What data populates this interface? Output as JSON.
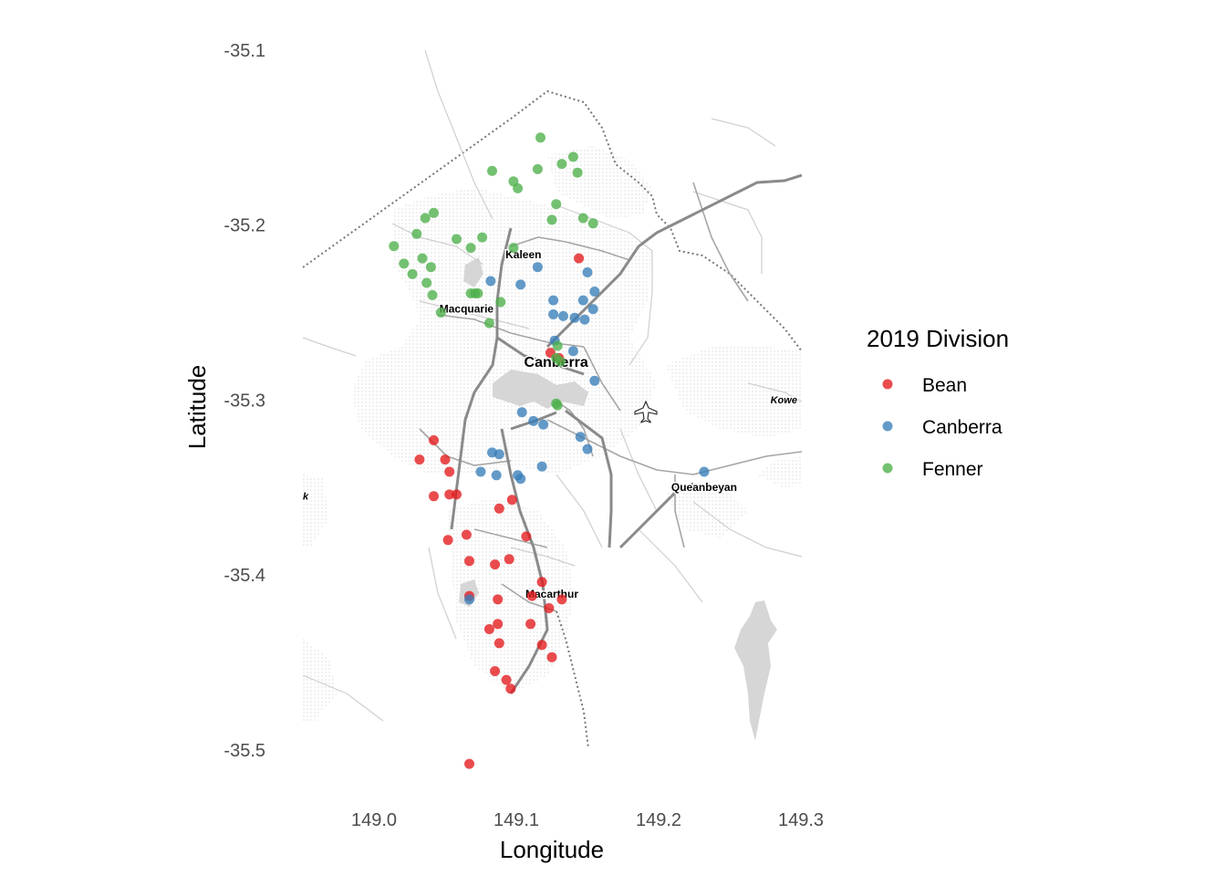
{
  "chart_data": {
    "type": "scatter",
    "xlabel": "Longitude",
    "ylabel": "Latitude",
    "xlim": [
      148.95,
      149.3
    ],
    "ylim": [
      -35.53,
      -35.09
    ],
    "x_ticks": [
      "149.0",
      "149.1",
      "149.2",
      "149.3"
    ],
    "x_tick_values": [
      149.0,
      149.1,
      149.2,
      149.3
    ],
    "y_ticks": [
      "-35.1",
      "-35.2",
      "-35.3",
      "-35.4",
      "-35.5"
    ],
    "y_tick_values": [
      -35.1,
      -35.2,
      -35.3,
      -35.4,
      -35.5
    ],
    "legend": {
      "title": "2019 Division",
      "placement": "right",
      "entries": [
        {
          "label": "Bean",
          "color": "#e41a1c"
        },
        {
          "label": "Canberra",
          "color": "#377eb8"
        },
        {
          "label": "Fenner",
          "color": "#4daf4a"
        }
      ]
    },
    "place_labels": [
      {
        "name": "Kaleen",
        "lon": 149.105,
        "lat": -35.219
      },
      {
        "name": "Macquarie",
        "lon": 149.065,
        "lat": -35.25
      },
      {
        "name": "Canberra",
        "lon": 149.128,
        "lat": -35.281
      },
      {
        "name": "Queanbeyan",
        "lon": 149.232,
        "lat": -35.352
      },
      {
        "name": "Macarthur",
        "lon": 149.125,
        "lat": -35.413
      },
      {
        "name": "Kowe",
        "lon": 149.288,
        "lat": -35.302
      },
      {
        "name": "k",
        "lon": 148.952,
        "lat": -35.357
      }
    ],
    "series": [
      {
        "name": "Bean",
        "color": "#e41a1c",
        "points": [
          [
            149.144,
            -35.219
          ],
          [
            149.124,
            -35.273
          ],
          [
            149.13,
            -35.276
          ],
          [
            149.042,
            -35.323
          ],
          [
            149.032,
            -35.334
          ],
          [
            149.05,
            -35.334
          ],
          [
            149.053,
            -35.341
          ],
          [
            149.042,
            -35.355
          ],
          [
            149.053,
            -35.354
          ],
          [
            149.058,
            -35.354
          ],
          [
            149.088,
            -35.362
          ],
          [
            149.097,
            -35.357
          ],
          [
            149.065,
            -35.377
          ],
          [
            149.052,
            -35.38
          ],
          [
            149.107,
            -35.378
          ],
          [
            149.067,
            -35.392
          ],
          [
            149.085,
            -35.394
          ],
          [
            149.095,
            -35.391
          ],
          [
            149.118,
            -35.404
          ],
          [
            149.111,
            -35.412
          ],
          [
            149.132,
            -35.414
          ],
          [
            149.123,
            -35.419
          ],
          [
            149.067,
            -35.412
          ],
          [
            149.087,
            -35.414
          ],
          [
            149.087,
            -35.428
          ],
          [
            149.11,
            -35.428
          ],
          [
            149.081,
            -35.431
          ],
          [
            149.088,
            -35.439
          ],
          [
            149.118,
            -35.44
          ],
          [
            149.125,
            -35.447
          ],
          [
            149.085,
            -35.455
          ],
          [
            149.093,
            -35.46
          ],
          [
            149.096,
            -35.465
          ],
          [
            149.067,
            -35.508
          ]
        ]
      },
      {
        "name": "Canberra",
        "color": "#377eb8",
        "points": [
          [
            149.15,
            -35.227
          ],
          [
            149.115,
            -35.224
          ],
          [
            149.082,
            -35.232
          ],
          [
            149.103,
            -35.234
          ],
          [
            149.155,
            -35.238
          ],
          [
            149.126,
            -35.243
          ],
          [
            149.147,
            -35.243
          ],
          [
            149.154,
            -35.248
          ],
          [
            149.126,
            -35.251
          ],
          [
            149.133,
            -35.252
          ],
          [
            149.141,
            -35.253
          ],
          [
            149.148,
            -35.254
          ],
          [
            149.127,
            -35.266
          ],
          [
            149.14,
            -35.272
          ],
          [
            149.155,
            -35.289
          ],
          [
            149.104,
            -35.307
          ],
          [
            149.112,
            -35.312
          ],
          [
            149.119,
            -35.314
          ],
          [
            149.145,
            -35.321
          ],
          [
            149.15,
            -35.328
          ],
          [
            149.118,
            -35.338
          ],
          [
            149.103,
            -35.345
          ],
          [
            149.232,
            -35.341
          ],
          [
            149.083,
            -35.33
          ],
          [
            149.088,
            -35.331
          ],
          [
            149.075,
            -35.341
          ],
          [
            149.086,
            -35.343
          ],
          [
            149.101,
            -35.343
          ],
          [
            149.067,
            -35.414
          ]
        ]
      },
      {
        "name": "Fenner",
        "color": "#4daf4a",
        "points": [
          [
            149.117,
            -35.15
          ],
          [
            149.14,
            -35.161
          ],
          [
            149.132,
            -35.165
          ],
          [
            149.115,
            -35.168
          ],
          [
            149.083,
            -35.169
          ],
          [
            149.143,
            -35.17
          ],
          [
            149.098,
            -35.175
          ],
          [
            149.101,
            -35.179
          ],
          [
            149.128,
            -35.188
          ],
          [
            149.042,
            -35.193
          ],
          [
            149.036,
            -35.196
          ],
          [
            149.147,
            -35.196
          ],
          [
            149.125,
            -35.197
          ],
          [
            149.154,
            -35.199
          ],
          [
            149.03,
            -35.205
          ],
          [
            149.058,
            -35.208
          ],
          [
            149.076,
            -35.207
          ],
          [
            149.068,
            -35.213
          ],
          [
            149.014,
            -35.212
          ],
          [
            149.098,
            -35.213
          ],
          [
            149.034,
            -35.219
          ],
          [
            149.021,
            -35.222
          ],
          [
            149.04,
            -35.224
          ],
          [
            149.027,
            -35.228
          ],
          [
            149.037,
            -35.233
          ],
          [
            149.041,
            -35.24
          ],
          [
            149.068,
            -35.239
          ],
          [
            149.071,
            -35.239
          ],
          [
            149.073,
            -35.239
          ],
          [
            149.089,
            -35.244
          ],
          [
            149.047,
            -35.25
          ],
          [
            149.081,
            -35.256
          ],
          [
            149.129,
            -35.269
          ],
          [
            149.128,
            -35.276
          ],
          [
            149.131,
            -35.278
          ],
          [
            149.128,
            -35.302
          ],
          [
            149.129,
            -35.303
          ]
        ]
      }
    ]
  }
}
